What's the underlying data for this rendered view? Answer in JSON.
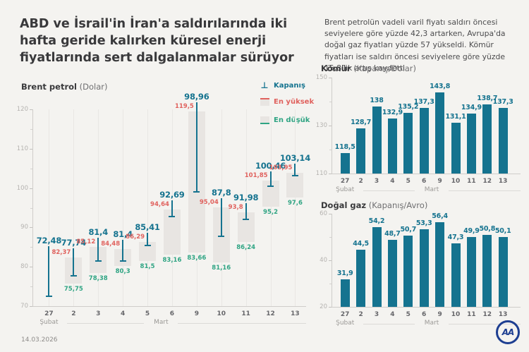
{
  "title": "ABD ve İsrail'in İran'a saldırılarında iki hafta geride kalırken küresel enerji fiyatlarında sert dalgalanmalar sürüyor",
  "intro": "Brent petrolün vadeli varil fiyatı saldırı öncesi seviyelere göre yüzde 42,3 artarken, Avrupa'da doğal gaz fiyatları yüzde 57 yükseldi. Kömür fiyatları ise saldırı öncesi seviyelere göre yüzde 15,8'lik artış kaydetti",
  "legend": {
    "close": "Kapanış",
    "high": "En yüksek",
    "low": "En düşük",
    "close_icon": "⊥"
  },
  "colors": {
    "teal": "#15738f",
    "red": "#e0625e",
    "green": "#2fa483",
    "box_gray": "#e8e5e2",
    "logo_blue": "#1d3e91",
    "background": "#f4f3f0"
  },
  "footer": {
    "date": "14.03.2026",
    "logo_text": "AA"
  },
  "chart_data": [
    {
      "id": "brent",
      "type": "hlc",
      "title": "Brent petrol",
      "subtitle": "(Dolar)",
      "categories": [
        "27",
        "2",
        "3",
        "4",
        "5",
        "6",
        "9",
        "10",
        "11",
        "12",
        "13"
      ],
      "month_first": "Şubat",
      "month_rest": "Mart",
      "ylim": [
        70,
        120
      ],
      "yticks": [
        70,
        80,
        90,
        100,
        110,
        120
      ],
      "grid": "vertical",
      "legend_position": "top-right",
      "series": [
        {
          "name": "Kapanış",
          "values": [
            72.48,
            77.74,
            81.4,
            81.4,
            85.41,
            92.69,
            98.96,
            87.8,
            91.98,
            100.46,
            103.14
          ],
          "labels": [
            "72,48",
            "77,74",
            "81,4",
            "81,4",
            "85,41",
            "92,69",
            "98,96",
            "87,8",
            "91,98",
            "100,46",
            "103,14"
          ]
        },
        {
          "name": "En yüksek",
          "values": [
            null,
            82.37,
            85.12,
            84.48,
            86.29,
            94.64,
            119.5,
            95.04,
            93.8,
            101.85,
            103.95
          ],
          "labels": [
            "",
            "82,37",
            "85,12",
            "84,48",
            "86,29",
            "94,64",
            "119,5",
            "95,04",
            "93,8",
            "101,85",
            "103,95"
          ]
        },
        {
          "name": "En düşük",
          "values": [
            null,
            75.75,
            78.38,
            80.3,
            81.5,
            83.16,
            83.66,
            81.16,
            86.24,
            95.2,
            97.6
          ],
          "labels": [
            "",
            "75,75",
            "78,38",
            "80,3",
            "81,5",
            "83,16",
            "83,66",
            "81,16",
            "86,24",
            "95,2",
            "97,6"
          ]
        }
      ]
    },
    {
      "id": "komur",
      "type": "bar",
      "title": "Kömür",
      "subtitle": "(Kapanış/Dolar)",
      "categories": [
        "27",
        "2",
        "3",
        "4",
        "5",
        "6",
        "9",
        "10",
        "11",
        "12",
        "13"
      ],
      "month_first": "Şubat",
      "month_rest": "Mart",
      "ylim": [
        110,
        150
      ],
      "yticks": [
        110,
        130,
        150
      ],
      "values": [
        118.5,
        128.7,
        138,
        132.9,
        135.2,
        137.3,
        143.8,
        131.1,
        134.9,
        138.7,
        137.3
      ],
      "labels": [
        "118,5",
        "128,7",
        "138",
        "132,9",
        "135,2",
        "137,3",
        "143,8",
        "131,1",
        "134,9",
        "138,7",
        "137,3"
      ]
    },
    {
      "id": "dogalgaz",
      "type": "bar",
      "title": "Doğal gaz",
      "subtitle": "(Kapanış/Avro)",
      "categories": [
        "27",
        "2",
        "3",
        "4",
        "5",
        "6",
        "9",
        "10",
        "11",
        "12",
        "13"
      ],
      "month_first": "Şubat",
      "month_rest": "Mart",
      "ylim": [
        20,
        60
      ],
      "yticks": [
        20,
        40,
        60
      ],
      "values": [
        31.9,
        44.5,
        54.2,
        48.7,
        50.7,
        53.3,
        56.4,
        47.3,
        49.9,
        50.8,
        50.1
      ],
      "labels": [
        "31,9",
        "44,5",
        "54,2",
        "48,7",
        "50,7",
        "53,3",
        "56,4",
        "47,3",
        "49,9",
        "50,8",
        "50,1"
      ]
    }
  ]
}
